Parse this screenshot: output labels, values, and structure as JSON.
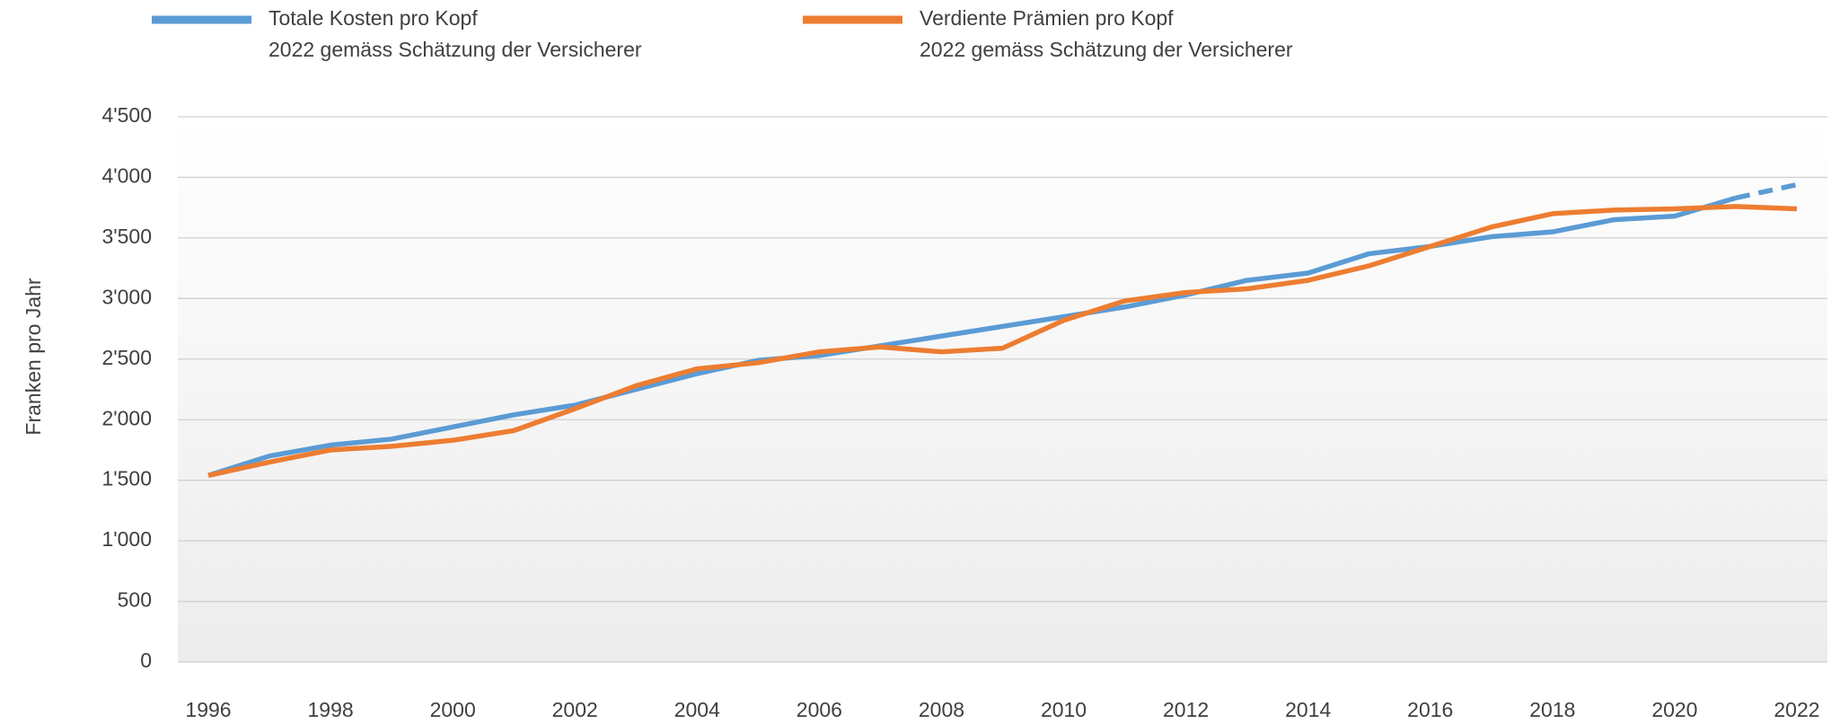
{
  "chart_data": {
    "type": "line",
    "y_axis_label": "Franken pro Jahr",
    "x": [
      1996,
      1997,
      1998,
      1999,
      2000,
      2001,
      2002,
      2003,
      2004,
      2005,
      2006,
      2007,
      2008,
      2009,
      2010,
      2011,
      2012,
      2013,
      2014,
      2015,
      2016,
      2017,
      2018,
      2019,
      2020,
      2021,
      2022
    ],
    "series": [
      {
        "name": "Totale Kosten pro Kopf",
        "note": "2022 gemäss Schätzung der Versicherer",
        "color": "#5b9bd5",
        "dashed_from": 2021,
        "values": [
          1540,
          1700,
          1790,
          1840,
          1940,
          2040,
          2120,
          2250,
          2380,
          2490,
          2530,
          2610,
          2690,
          2770,
          2850,
          2930,
          3030,
          3150,
          3210,
          3370,
          3430,
          3510,
          3550,
          3650,
          3680,
          3830,
          3940
        ]
      },
      {
        "name": "Verdiente Prämien pro Kopf",
        "note": "2022 gemäss Schätzung der Versicherer",
        "color": "#ed7d31",
        "values": [
          1540,
          1650,
          1750,
          1780,
          1830,
          1910,
          2090,
          2280,
          2420,
          2470,
          2560,
          2600,
          2560,
          2590,
          2820,
          2980,
          3050,
          3080,
          3150,
          3270,
          3430,
          3590,
          3700,
          3730,
          3740,
          3760,
          3740
        ]
      }
    ],
    "xlim": [
      1995.5,
      2022.5
    ],
    "xticks": [
      1996,
      1998,
      2000,
      2002,
      2004,
      2006,
      2008,
      2010,
      2012,
      2014,
      2016,
      2018,
      2020,
      2022
    ],
    "ylim": [
      0,
      4500
    ],
    "yticks": [
      0,
      500,
      {
        "value": 1000,
        "label": "1'000"
      },
      {
        "value": 1500,
        "label": "1'500"
      },
      {
        "value": 2000,
        "label": "2'000"
      },
      {
        "value": 2500,
        "label": "2'500"
      },
      {
        "value": 3000,
        "label": "3'000"
      },
      {
        "value": 3500,
        "label": "3'500"
      },
      {
        "value": 4000,
        "label": "4'000"
      },
      {
        "value": 4500,
        "label": "4'500"
      }
    ],
    "grid": true
  }
}
